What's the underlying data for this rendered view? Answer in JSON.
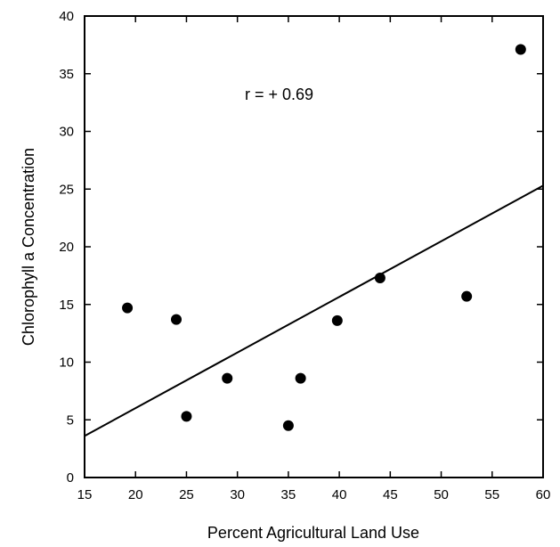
{
  "chart_data": {
    "type": "scatter",
    "title": "",
    "xlabel": "Percent Agricultural Land Use",
    "ylabel": "Chlorophyll a Concentration",
    "xlim": [
      15,
      60
    ],
    "ylim": [
      0,
      40
    ],
    "x_ticks": [
      15,
      20,
      25,
      30,
      35,
      40,
      45,
      50,
      55,
      60
    ],
    "y_ticks": [
      0,
      5,
      10,
      15,
      20,
      25,
      30,
      35,
      40
    ],
    "grid": false,
    "points": [
      {
        "x": 19.2,
        "y": 14.7
      },
      {
        "x": 24.0,
        "y": 13.7
      },
      {
        "x": 25.0,
        "y": 5.3
      },
      {
        "x": 29.0,
        "y": 8.6
      },
      {
        "x": 35.0,
        "y": 4.5
      },
      {
        "x": 36.2,
        "y": 8.6
      },
      {
        "x": 39.8,
        "y": 13.6
      },
      {
        "x": 44.0,
        "y": 17.3
      },
      {
        "x": 52.5,
        "y": 15.7
      },
      {
        "x": 57.8,
        "y": 37.1
      }
    ],
    "trendline": {
      "x": [
        15,
        60
      ],
      "y": [
        3.6,
        25.3
      ]
    },
    "annotation": "r = + 0.69"
  }
}
